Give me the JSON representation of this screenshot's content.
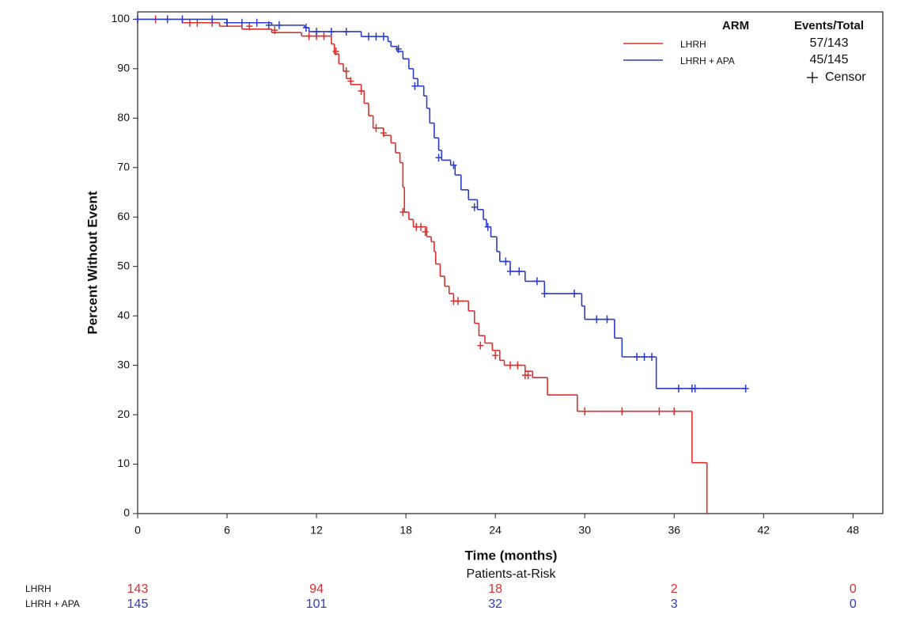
{
  "chart_data": {
    "type": "km",
    "x_label": "Time (months)",
    "y_label": "Percent Without Event",
    "xlim": [
      0,
      50
    ],
    "ylim": [
      0,
      101.5
    ],
    "xticks": [
      0,
      6,
      12,
      18,
      24,
      30,
      36,
      42,
      48
    ],
    "yticks": [
      0,
      10,
      20,
      30,
      40,
      50,
      60,
      70,
      80,
      90,
      100
    ],
    "legend": {
      "arm_title": "ARM",
      "events_title": "Events/Total",
      "censor_label": "Censor"
    },
    "series": [
      {
        "name": "LHRH",
        "color": "#d8302c",
        "events": "57/143",
        "x": [
          0,
          3,
          5.5,
          7,
          9,
          11,
          13,
          13.2,
          13.5,
          13.8,
          14,
          14.3,
          15,
          15.2,
          15.5,
          15.8,
          16.5,
          17,
          17.3,
          17.6,
          17.8,
          17.9,
          18.2,
          18.5,
          19.4,
          19.7,
          19.9,
          20,
          20.3,
          20.6,
          20.9,
          21.2,
          22.2,
          22.6,
          22.9,
          23.3,
          23.8,
          24.3,
          24.6,
          26,
          26.5,
          27.5,
          29.5,
          37.2,
          38.2
        ],
        "y": [
          100,
          99.3,
          98.6,
          98,
          97.3,
          96.6,
          95,
          93,
          91,
          89.5,
          88,
          86.8,
          85.5,
          83,
          80.5,
          78,
          76.5,
          75,
          73,
          71,
          66,
          61,
          59.5,
          58,
          56,
          55,
          53,
          50.5,
          48,
          46,
          44.5,
          43,
          41,
          38.5,
          36,
          34.5,
          33,
          31,
          30,
          28.8,
          27.5,
          24,
          20.7,
          10.3,
          0
        ],
        "censor_x": [
          0,
          1.2,
          3.5,
          4,
          5,
          6,
          7.5,
          9.2,
          11.5,
          12,
          12.5,
          13.3,
          14,
          14.3,
          15,
          16,
          16.5,
          17.8,
          18.7,
          19,
          19.3,
          21.2,
          21.5,
          23,
          24,
          25,
          25.5,
          26,
          26.2,
          30,
          32.5,
          35,
          36
        ],
        "censor_y": [
          100,
          100,
          99.3,
          99.3,
          99.3,
          99.3,
          98.6,
          97.8,
          96.6,
          96.6,
          96.6,
          93.5,
          89.5,
          87.5,
          85.5,
          78,
          77,
          61,
          58,
          58,
          57,
          43,
          43,
          34,
          32,
          30,
          30,
          28,
          28,
          20.7,
          20.7,
          20.7,
          20.7
        ]
      },
      {
        "name": "LHRH + APA",
        "color": "#2a3cc8",
        "events": "45/145",
        "x": [
          0,
          6,
          9,
          11.2,
          11.5,
          15,
          16.8,
          17,
          17.4,
          17.8,
          18.2,
          18.5,
          18.8,
          19.2,
          19.4,
          19.6,
          19.9,
          20.2,
          20.4,
          21,
          21.3,
          21.7,
          22.2,
          22.8,
          23.2,
          23.4,
          23.7,
          24.1,
          24.3,
          25,
          26,
          27.3,
          29.8,
          30,
          32,
          32.5,
          34.8
        ],
        "y": [
          100,
          99.3,
          98.8,
          98.3,
          97.5,
          96.5,
          95.5,
          94.5,
          93.5,
          92,
          90,
          88,
          86.5,
          84.5,
          82,
          79,
          76,
          73.5,
          71.5,
          70.5,
          68.5,
          65.5,
          63.5,
          61.5,
          59.5,
          58,
          56,
          53,
          51,
          49,
          47,
          44.5,
          42,
          39.3,
          35.5,
          31.7,
          25.3
        ],
        "censor_x": [
          0,
          2,
          3,
          5,
          6,
          7,
          8,
          8.8,
          9.5,
          11.3,
          12,
          13,
          14,
          15.5,
          16,
          16.5,
          17.5,
          18.6,
          20.2,
          21.2,
          22.6,
          23.5,
          24.7,
          25,
          25.6,
          26.8,
          27.3,
          29.3,
          30.8,
          31.5,
          33.5,
          34,
          34.5,
          36.3,
          37.2,
          37.4,
          40.8
        ],
        "censor_y": [
          100,
          100,
          100,
          100,
          99.3,
          99.3,
          99.3,
          98.8,
          98.8,
          98.3,
          97.5,
          97.5,
          97.5,
          96.5,
          96.5,
          96.5,
          94,
          86.5,
          72,
          70.5,
          62,
          58,
          51,
          49,
          49,
          47,
          44.5,
          44.5,
          39.3,
          39.3,
          31.7,
          31.7,
          31.7,
          25.3,
          25.3,
          25.3,
          25.3
        ]
      }
    ],
    "at_risk": {
      "title": "Patients-at-Risk",
      "times": [
        0,
        12,
        24,
        36,
        48
      ],
      "counts": [
        [
          143,
          94,
          18,
          2,
          0
        ],
        [
          145,
          101,
          32,
          3,
          0
        ]
      ]
    }
  }
}
